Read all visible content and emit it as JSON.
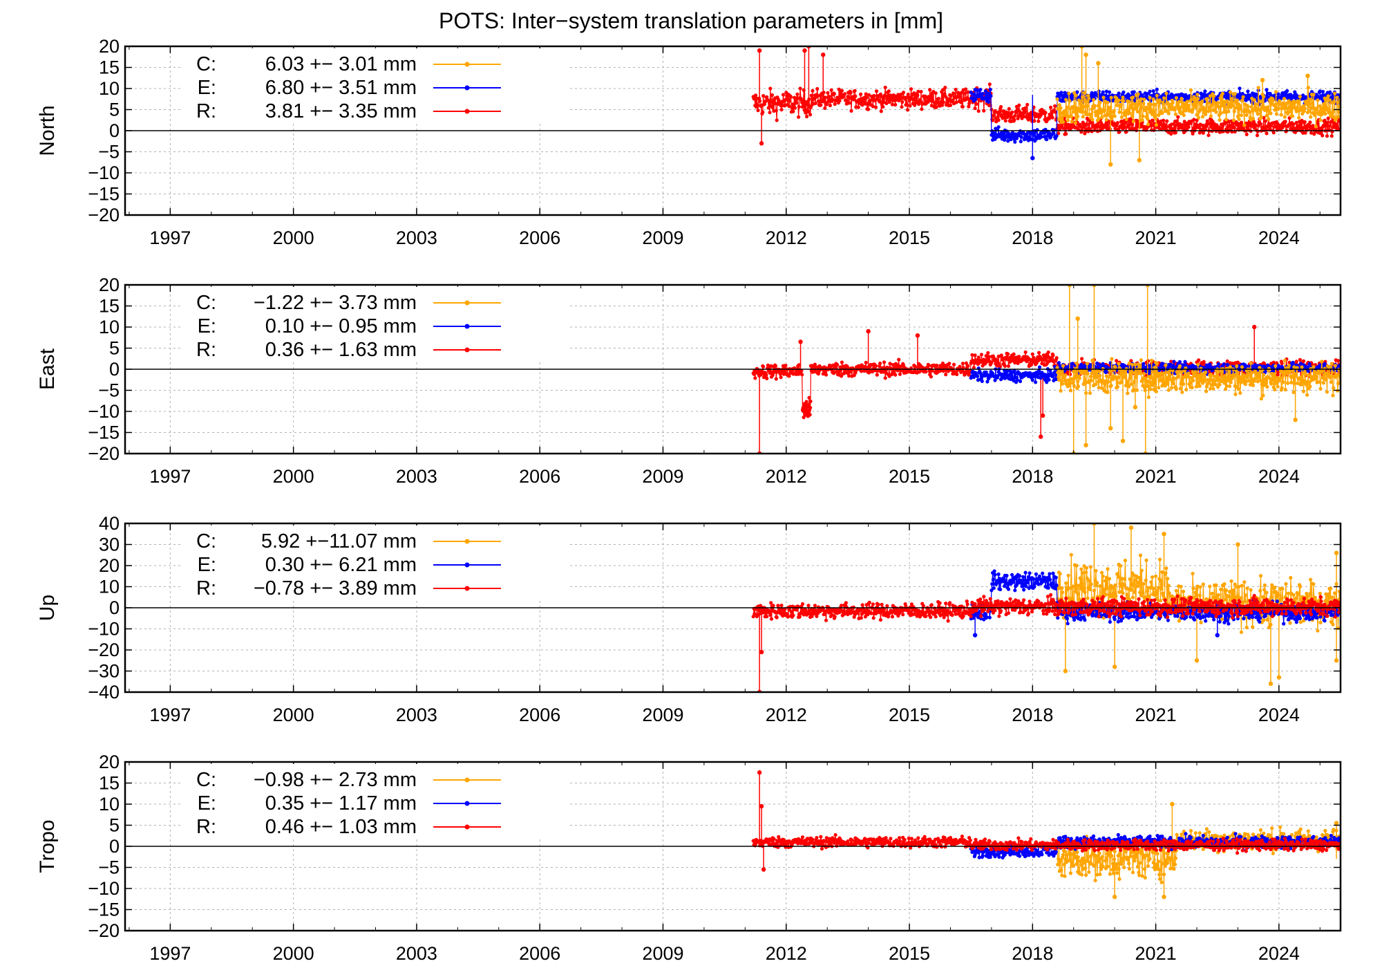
{
  "title": "POTS: Inter−system translation parameters in [mm]",
  "colors": {
    "C": "#ffa500",
    "E": "#0000ff",
    "R": "#ff0000"
  },
  "chart_data": [
    {
      "type": "scatter",
      "ylabel": "North",
      "xlim": [
        1995.9,
        2025.5
      ],
      "ylim": [
        -20,
        20
      ],
      "yticks": [
        20,
        15,
        10,
        5,
        0,
        -5,
        -10,
        -15,
        -20
      ],
      "xticks": [
        1997,
        2000,
        2003,
        2006,
        2009,
        2012,
        2015,
        2018,
        2021,
        2024
      ],
      "legend_position": "top-left",
      "legend": [
        {
          "key": "C",
          "label": "C:",
          "text": "6.03 +− 3.01 mm"
        },
        {
          "key": "E",
          "label": "E:",
          "text": "6.80 +− 3.51 mm"
        },
        {
          "key": "R",
          "label": "R:",
          "text": "3.81 +− 3.35 mm"
        }
      ],
      "series": [
        {
          "key": "R",
          "segments": [
            {
              "x": [
                2011.2,
                2012.6
              ],
              "mean": 6.5,
              "noise": 2.2
            },
            {
              "x": [
                2012.6,
                2016.5
              ],
              "mean": 7.5,
              "noise": 1.6
            },
            {
              "x": [
                2016.5,
                2017.0
              ],
              "mean": 7.8,
              "noise": 1.8
            },
            {
              "x": [
                2017.0,
                2018.6
              ],
              "mean": 3.8,
              "noise": 1.5
            },
            {
              "x": [
                2018.6,
                2025.5
              ],
              "mean": 1.0,
              "noise": 1.3
            }
          ],
          "spikes": [
            [
              2011.35,
              19
            ],
            [
              2011.4,
              -3
            ],
            [
              2012.45,
              19
            ],
            [
              2012.55,
              20
            ],
            [
              2012.9,
              18
            ]
          ]
        },
        {
          "key": "E",
          "segments": [
            {
              "x": [
                2016.5,
                2017.0
              ],
              "mean": 8.5,
              "noise": 1.3
            },
            {
              "x": [
                2017.0,
                2018.6
              ],
              "mean": -1.0,
              "noise": 1.2
            },
            {
              "x": [
                2018.6,
                2025.5
              ],
              "mean": 8.0,
              "noise": 1.0
            }
          ],
          "spikes": [
            [
              2018.0,
              -6.5
            ]
          ]
        },
        {
          "key": "C",
          "segments": [
            {
              "x": [
                2018.6,
                2025.5
              ],
              "mean": 5.5,
              "noise": 2.4
            }
          ],
          "spikes": [
            [
              2019.2,
              20
            ],
            [
              2019.3,
              18
            ],
            [
              2019.6,
              16
            ],
            [
              2019.9,
              -8
            ],
            [
              2020.6,
              -7
            ],
            [
              2023.6,
              12
            ],
            [
              2024.7,
              13
            ]
          ]
        }
      ]
    },
    {
      "type": "scatter",
      "ylabel": "East",
      "xlim": [
        1995.9,
        2025.5
      ],
      "ylim": [
        -20,
        20
      ],
      "yticks": [
        20,
        15,
        10,
        5,
        0,
        -5,
        -10,
        -15,
        -20
      ],
      "xticks": [
        1997,
        2000,
        2003,
        2006,
        2009,
        2012,
        2015,
        2018,
        2021,
        2024
      ],
      "legend_position": "top-left",
      "legend": [
        {
          "key": "C",
          "label": "C:",
          "text": "−1.22 +− 3.73 mm"
        },
        {
          "key": "E",
          "label": "E:",
          "text": "0.10 +− 0.95 mm"
        },
        {
          "key": "R",
          "label": "R:",
          "text": "0.36 +− 1.63 mm"
        }
      ],
      "series": [
        {
          "key": "R",
          "segments": [
            {
              "x": [
                2011.2,
                2012.4
              ],
              "mean": -0.5,
              "noise": 1.2
            },
            {
              "x": [
                2012.4,
                2012.6
              ],
              "mean": -9.5,
              "noise": 1.8
            },
            {
              "x": [
                2012.6,
                2016.5
              ],
              "mean": 0.0,
              "noise": 1.2
            },
            {
              "x": [
                2016.5,
                2018.6
              ],
              "mean": 2.2,
              "noise": 1.2
            },
            {
              "x": [
                2018.6,
                2025.5
              ],
              "mean": 0.3,
              "noise": 1.2
            }
          ],
          "spikes": [
            [
              2011.35,
              -20
            ],
            [
              2012.35,
              6.5
            ],
            [
              2014.0,
              9
            ],
            [
              2015.2,
              8
            ],
            [
              2018.2,
              -16
            ],
            [
              2018.25,
              -11
            ],
            [
              2023.4,
              10
            ]
          ]
        },
        {
          "key": "E",
          "segments": [
            {
              "x": [
                2016.5,
                2018.6
              ],
              "mean": -1.5,
              "noise": 1.0
            },
            {
              "x": [
                2018.6,
                2025.5
              ],
              "mean": 0.3,
              "noise": 0.8
            }
          ],
          "spikes": []
        },
        {
          "key": "C",
          "segments": [
            {
              "x": [
                2018.6,
                2025.5
              ],
              "mean": -2.0,
              "noise": 2.6
            }
          ],
          "spikes": [
            [
              2018.9,
              20
            ],
            [
              2019.0,
              -20
            ],
            [
              2019.1,
              12
            ],
            [
              2019.3,
              -18
            ],
            [
              2019.5,
              20
            ],
            [
              2019.9,
              -14
            ],
            [
              2020.2,
              -17
            ],
            [
              2020.5,
              -9
            ],
            [
              2020.8,
              20
            ],
            [
              2020.75,
              -20
            ],
            [
              2024.4,
              -12
            ]
          ]
        }
      ]
    },
    {
      "type": "scatter",
      "ylabel": "Up",
      "xlim": [
        1995.9,
        2025.5
      ],
      "ylim": [
        -40,
        40
      ],
      "yticks": [
        40,
        30,
        20,
        10,
        0,
        -10,
        -20,
        -30,
        -40
      ],
      "xticks": [
        1997,
        2000,
        2003,
        2006,
        2009,
        2012,
        2015,
        2018,
        2021,
        2024
      ],
      "legend_position": "top-left",
      "legend": [
        {
          "key": "C",
          "label": "C:",
          "text": "5.92 +−11.07 mm"
        },
        {
          "key": "E",
          "label": "E:",
          "text": "0.30 +− 6.21 mm"
        },
        {
          "key": "R",
          "label": "R:",
          "text": "−0.78 +− 3.89 mm"
        }
      ],
      "series": [
        {
          "key": "C",
          "segments": [
            {
              "x": [
                2018.6,
                2021.3
              ],
              "mean": 10.0,
              "noise": 9.0
            },
            {
              "x": [
                2021.3,
                2025.5
              ],
              "mean": 2.0,
              "noise": 7.5
            }
          ],
          "spikes": [
            [
              2018.8,
              -30
            ],
            [
              2019.5,
              40
            ],
            [
              2020.0,
              -28
            ],
            [
              2020.4,
              38
            ],
            [
              2021.2,
              35
            ],
            [
              2022.0,
              -25
            ],
            [
              2023.0,
              30
            ],
            [
              2023.8,
              -36
            ],
            [
              2024.0,
              -33
            ],
            [
              2025.4,
              26
            ],
            [
              2025.4,
              -25
            ]
          ]
        },
        {
          "key": "E",
          "segments": [
            {
              "x": [
                2016.5,
                2017.0
              ],
              "mean": -2.0,
              "noise": 3.0
            },
            {
              "x": [
                2017.0,
                2018.6
              ],
              "mean": 12.5,
              "noise": 3.0
            },
            {
              "x": [
                2018.6,
                2025.5
              ],
              "mean": -2.0,
              "noise": 3.0
            }
          ],
          "spikes": [
            [
              2016.6,
              -13
            ],
            [
              2022.5,
              -13
            ]
          ]
        },
        {
          "key": "R",
          "segments": [
            {
              "x": [
                2011.2,
                2016.5
              ],
              "mean": -1.5,
              "noise": 2.6
            },
            {
              "x": [
                2016.5,
                2025.5
              ],
              "mean": 0.5,
              "noise": 3.0
            }
          ],
          "spikes": [
            [
              2011.35,
              -40
            ],
            [
              2011.4,
              -21
            ]
          ]
        }
      ]
    },
    {
      "type": "scatter",
      "ylabel": "Tropo",
      "xlim": [
        1995.9,
        2025.5
      ],
      "ylim": [
        -20,
        20
      ],
      "yticks": [
        20,
        15,
        10,
        5,
        0,
        -5,
        -10,
        -15,
        -20
      ],
      "xticks": [
        1997,
        2000,
        2003,
        2006,
        2009,
        2012,
        2015,
        2018,
        2021,
        2024
      ],
      "legend_position": "top-left",
      "legend": [
        {
          "key": "C",
          "label": "C:",
          "text": "−0.98 +− 2.73 mm"
        },
        {
          "key": "E",
          "label": "E:",
          "text": "0.35 +− 1.17 mm"
        },
        {
          "key": "R",
          "label": "R:",
          "text": "0.46 +− 1.03 mm"
        }
      ],
      "series": [
        {
          "key": "C",
          "segments": [
            {
              "x": [
                2018.6,
                2021.5
              ],
              "mean": -3.0,
              "noise": 3.2
            },
            {
              "x": [
                2021.5,
                2025.5
              ],
              "mean": 1.5,
              "noise": 1.8
            }
          ],
          "spikes": [
            [
              2020.0,
              -12
            ],
            [
              2021.2,
              -12
            ],
            [
              2021.4,
              10
            ],
            [
              2025.4,
              5.5
            ]
          ]
        },
        {
          "key": "E",
          "segments": [
            {
              "x": [
                2016.5,
                2018.6
              ],
              "mean": -1.0,
              "noise": 1.1
            },
            {
              "x": [
                2018.6,
                2025.5
              ],
              "mean": 1.0,
              "noise": 1.0
            }
          ],
          "spikes": []
        },
        {
          "key": "R",
          "segments": [
            {
              "x": [
                2011.2,
                2016.5
              ],
              "mean": 1.0,
              "noise": 0.9
            },
            {
              "x": [
                2016.5,
                2025.5
              ],
              "mean": 0.3,
              "noise": 0.9
            }
          ],
          "spikes": [
            [
              2011.35,
              17.5
            ],
            [
              2011.4,
              9.5
            ],
            [
              2011.45,
              -5.5
            ]
          ]
        }
      ]
    }
  ]
}
